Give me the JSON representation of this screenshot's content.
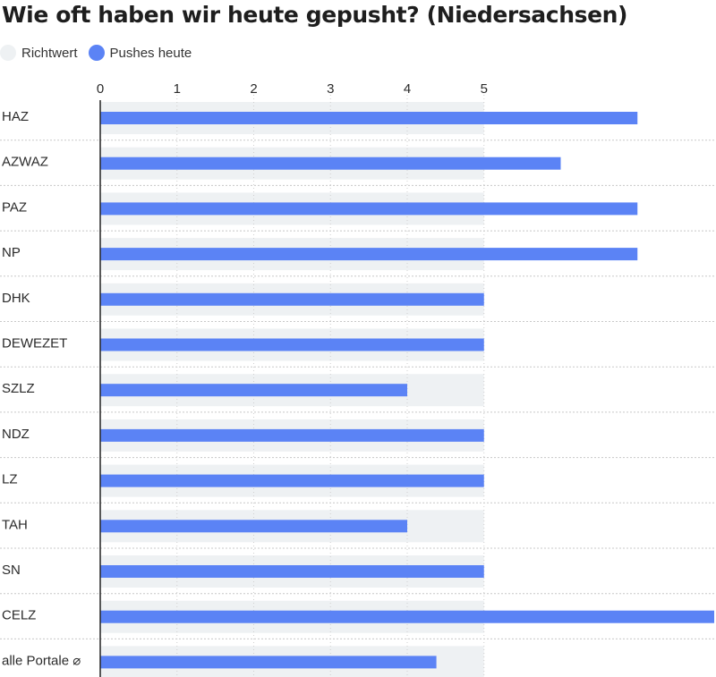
{
  "title": "Wie oft haben wir heute gepusht? (Niedersachsen)",
  "legend": {
    "target_label": "Richtwert",
    "actual_label": "Pushes heute"
  },
  "colors": {
    "target": "#eef1f3",
    "actual": "#5b83f5",
    "axis": "#222222",
    "grid": "#d0d0d0",
    "row_divider": "#c8c8c8"
  },
  "chart_data": {
    "type": "bar",
    "orientation": "horizontal",
    "title": "Wie oft haben wir heute gepusht? (Niedersachsen)",
    "categories": [
      "HAZ",
      "AZWAZ",
      "PAZ",
      "NP",
      "DHK",
      "DEWEZET",
      "SZLZ",
      "NDZ",
      "LZ",
      "TAH",
      "SN",
      "CELZ",
      "alle Portale ⌀"
    ],
    "series": [
      {
        "name": "Richtwert",
        "values": [
          5,
          5,
          5,
          5,
          5,
          5,
          5,
          5,
          5,
          5,
          5,
          5,
          5
        ]
      },
      {
        "name": "Pushes heute",
        "values": [
          7,
          6,
          7,
          7,
          5,
          5,
          4,
          5,
          5,
          4,
          5,
          8,
          4.38
        ]
      }
    ],
    "xticks": [
      0,
      1,
      2,
      3,
      4,
      5
    ],
    "xlim": [
      0,
      8
    ],
    "xlabel": "",
    "ylabel": "",
    "grid": true,
    "legend_position": "top-left"
  }
}
